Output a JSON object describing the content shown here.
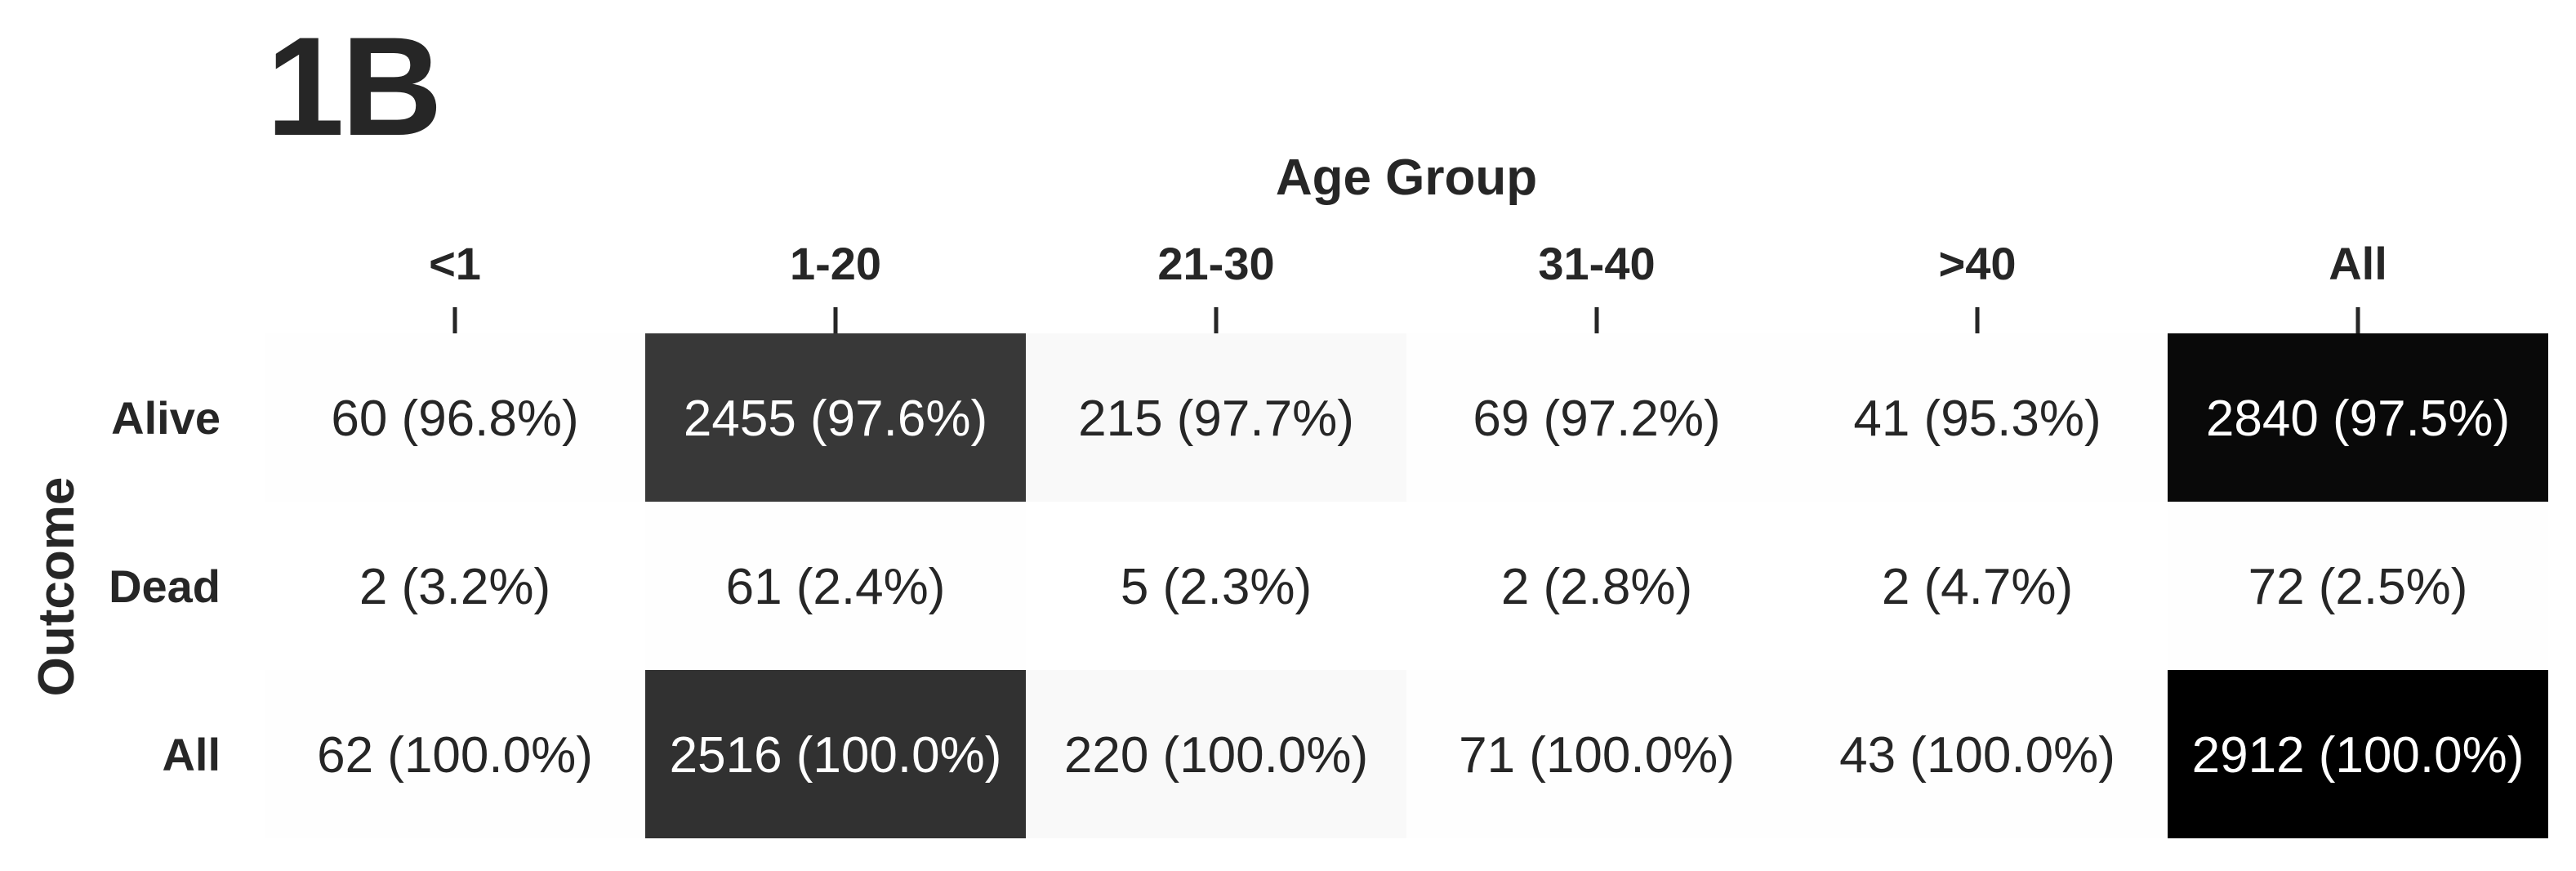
{
  "panel": {
    "label": "1B"
  },
  "chart_data": {
    "type": "heatmap",
    "title": "",
    "xlabel": "Age Group",
    "ylabel": "Outcome",
    "colormap": "Greys",
    "x_categories": [
      "<1",
      "1-20",
      "21-30",
      "31-40",
      ">40",
      "All"
    ],
    "y_categories": [
      "Alive",
      "Dead",
      "All"
    ],
    "counts": [
      [
        60,
        2455,
        215,
        69,
        41,
        2840
      ],
      [
        2,
        61,
        5,
        2,
        2,
        72
      ],
      [
        62,
        2516,
        220,
        71,
        43,
        2912
      ]
    ],
    "percentages": [
      [
        96.8,
        97.6,
        97.7,
        97.2,
        95.3,
        97.5
      ],
      [
        3.2,
        2.4,
        2.3,
        2.8,
        4.7,
        2.5
      ],
      [
        100.0,
        100.0,
        100.0,
        100.0,
        100.0,
        100.0
      ]
    ],
    "cell_labels": [
      [
        "60 (96.8%)",
        "2455 (97.6%)",
        "215 (97.7%)",
        "69 (97.2%)",
        "41 (95.3%)",
        "2840 (97.5%)"
      ],
      [
        "2 (3.2%)",
        "61 (2.4%)",
        "5 (2.3%)",
        "2 (2.8%)",
        "2 (4.7%)",
        "72 (2.5%)"
      ],
      [
        "62 (100.0%)",
        "2516 (100.0%)",
        "220 (100.0%)",
        "71 (100.0%)",
        "43 (100.0%)",
        "2912 (100.0%)"
      ]
    ],
    "x_axis_position": "top",
    "grid": false,
    "colorbar": false
  }
}
